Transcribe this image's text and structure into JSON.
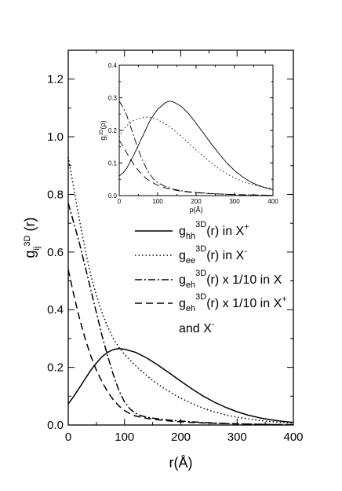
{
  "chart_data": [
    {
      "type": "line",
      "xlabel": "r(Å)",
      "ylabel": {
        "base": "g",
        "sub": "ij",
        "sup": "3D",
        "tail": " (r)"
      },
      "xlim": [
        0,
        400
      ],
      "ylim": [
        0.0,
        1.3
      ],
      "xticks": [
        0,
        100,
        200,
        300,
        400
      ],
      "xtick_labels": [
        "0",
        "100",
        "200",
        "300",
        "400"
      ],
      "yticks": [
        0.0,
        0.2,
        0.4,
        0.6,
        0.8,
        1.0,
        1.2
      ],
      "ytick_labels": [
        "0.0",
        "0.2",
        "0.4",
        "0.6",
        "0.8",
        "1.0",
        "1.2"
      ],
      "grid": false,
      "legend": {
        "placement": "center-right",
        "entries": [
          {
            "style": "solid",
            "base": "g",
            "sub": "hh",
            "sup": "3D",
            "text": "(r) in X",
            "charge": "+"
          },
          {
            "style": "dotted",
            "base": "g",
            "sub": "ee",
            "sup": "3D",
            "text": "(r) in X",
            "charge": "-"
          },
          {
            "style": "dashdot",
            "base": "g",
            "sub": "eh",
            "sup": "3D",
            "text": "(r) x 1/10 in X",
            "charge": ""
          },
          {
            "style": "dashed",
            "base": "g",
            "sub": "eh",
            "sup": "3D",
            "text": "(r) x 1/10 in X",
            "charge": "+"
          }
        ],
        "continuation": {
          "text": "and X",
          "charge": "-"
        }
      },
      "series": [
        {
          "style": "solid",
          "x": [
            0,
            10,
            20,
            30,
            40,
            50,
            60,
            70,
            80,
            90,
            100,
            120,
            140,
            160,
            180,
            200,
            220,
            240,
            260,
            280,
            300,
            320,
            340,
            360,
            380,
            400
          ],
          "y": [
            0.073,
            0.1,
            0.13,
            0.16,
            0.19,
            0.215,
            0.237,
            0.252,
            0.262,
            0.265,
            0.263,
            0.252,
            0.232,
            0.207,
            0.18,
            0.152,
            0.125,
            0.1,
            0.079,
            0.061,
            0.046,
            0.034,
            0.025,
            0.018,
            0.013,
            0.009
          ]
        },
        {
          "style": "dotted",
          "x": [
            0,
            10,
            20,
            30,
            40,
            50,
            60,
            70,
            80,
            90,
            100,
            120,
            140,
            160,
            180,
            200,
            220,
            240,
            260,
            280,
            300,
            320,
            340,
            360,
            380,
            400
          ],
          "y": [
            0.93,
            0.82,
            0.71,
            0.61,
            0.52,
            0.45,
            0.39,
            0.34,
            0.3,
            0.27,
            0.245,
            0.205,
            0.17,
            0.14,
            0.115,
            0.093,
            0.074,
            0.058,
            0.045,
            0.035,
            0.027,
            0.021,
            0.016,
            0.012,
            0.009,
            0.007
          ]
        },
        {
          "style": "dashdot",
          "x": [
            0,
            10,
            20,
            30,
            40,
            50,
            60,
            70,
            80,
            90,
            100,
            110,
            120,
            130,
            140,
            160,
            180,
            200,
            220,
            240,
            260,
            280,
            300,
            350,
            400
          ],
          "y": [
            0.77,
            0.7,
            0.63,
            0.55,
            0.47,
            0.39,
            0.31,
            0.24,
            0.175,
            0.12,
            0.08,
            0.055,
            0.04,
            0.032,
            0.027,
            0.021,
            0.017,
            0.014,
            0.011,
            0.009,
            0.007,
            0.005,
            0.004,
            0.002,
            0.001
          ]
        },
        {
          "style": "dashed",
          "x": [
            0,
            10,
            20,
            30,
            40,
            50,
            60,
            70,
            80,
            90,
            100,
            110,
            120,
            140,
            160,
            180,
            200,
            220,
            240,
            260,
            280,
            300,
            350,
            400
          ],
          "y": [
            0.54,
            0.45,
            0.37,
            0.3,
            0.24,
            0.19,
            0.15,
            0.115,
            0.088,
            0.066,
            0.05,
            0.039,
            0.031,
            0.023,
            0.018,
            0.014,
            0.011,
            0.009,
            0.007,
            0.006,
            0.005,
            0.004,
            0.002,
            0.001
          ]
        }
      ]
    },
    {
      "type": "line",
      "xlabel": "ρ(Å)",
      "ylabel": {
        "base": "g",
        "sub": "i",
        "sup": "2D",
        "tail": "(ρ)"
      },
      "xlim": [
        0,
        400
      ],
      "ylim": [
        0.0,
        0.4
      ],
      "xticks": [
        0,
        100,
        200,
        300,
        400
      ],
      "xtick_labels": [
        "0",
        "100",
        "200",
        "300",
        "400"
      ],
      "yticks": [
        0.0,
        0.1,
        0.2,
        0.3,
        0.4
      ],
      "ytick_labels": [
        "0.0",
        "0.1",
        "0.2",
        "0.3",
        "0.4"
      ],
      "grid": false,
      "series": [
        {
          "style": "solid",
          "x": [
            0,
            10,
            20,
            40,
            60,
            80,
            100,
            120,
            130,
            140,
            160,
            180,
            200,
            220,
            240,
            260,
            280,
            300,
            320,
            340,
            360,
            380,
            400
          ],
          "y": [
            0.06,
            0.07,
            0.085,
            0.13,
            0.18,
            0.23,
            0.265,
            0.285,
            0.29,
            0.288,
            0.275,
            0.252,
            0.222,
            0.19,
            0.158,
            0.128,
            0.1,
            0.077,
            0.058,
            0.043,
            0.032,
            0.024,
            0.018
          ]
        },
        {
          "style": "dotted",
          "x": [
            0,
            10,
            20,
            40,
            60,
            70,
            80,
            100,
            120,
            140,
            160,
            180,
            200,
            220,
            240,
            260,
            280,
            300,
            320,
            340,
            360,
            380,
            400
          ],
          "y": [
            0.18,
            0.2,
            0.215,
            0.232,
            0.24,
            0.241,
            0.24,
            0.233,
            0.22,
            0.203,
            0.183,
            0.162,
            0.14,
            0.12,
            0.1,
            0.082,
            0.067,
            0.054,
            0.044,
            0.036,
            0.03,
            0.025,
            0.021
          ]
        },
        {
          "style": "dashdot",
          "x": [
            0,
            10,
            20,
            30,
            40,
            50,
            60,
            70,
            80,
            90,
            100,
            120,
            140,
            160,
            180,
            200,
            220,
            240,
            260,
            280,
            300,
            350,
            400
          ],
          "y": [
            0.29,
            0.27,
            0.245,
            0.21,
            0.175,
            0.14,
            0.11,
            0.085,
            0.065,
            0.05,
            0.04,
            0.028,
            0.02,
            0.015,
            0.012,
            0.01,
            0.008,
            0.006,
            0.005,
            0.004,
            0.003,
            0.002,
            0.001
          ]
        },
        {
          "style": "dashed",
          "x": [
            0,
            10,
            20,
            30,
            40,
            50,
            60,
            70,
            80,
            100,
            120,
            140,
            160,
            180,
            200,
            220,
            240,
            260,
            280,
            300,
            350,
            400
          ],
          "y": [
            0.17,
            0.15,
            0.13,
            0.11,
            0.092,
            0.077,
            0.064,
            0.053,
            0.044,
            0.032,
            0.024,
            0.018,
            0.014,
            0.011,
            0.009,
            0.007,
            0.006,
            0.005,
            0.004,
            0.003,
            0.002,
            0.001
          ]
        }
      ]
    }
  ]
}
